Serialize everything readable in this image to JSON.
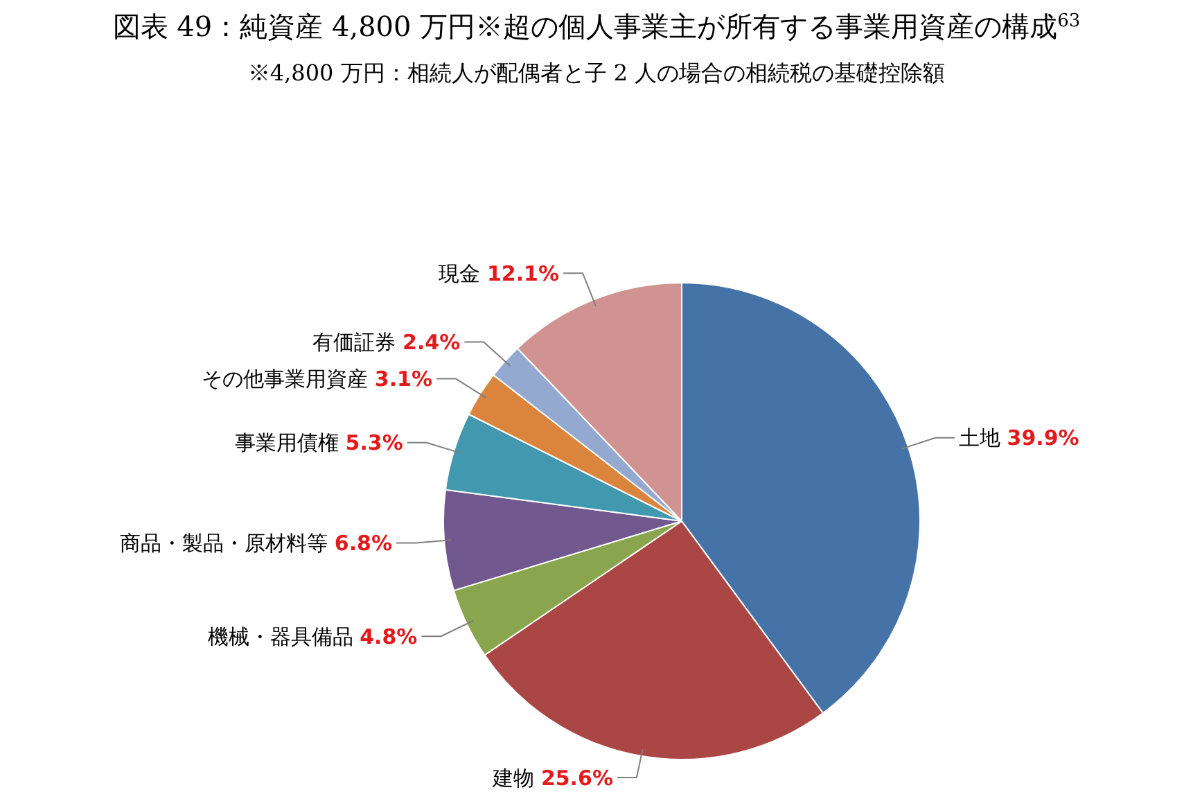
{
  "chart_data": {
    "type": "pie",
    "title": "図表 49：純資産 4,800 万円※超の個人事業主が所有する事業用資産の構成$^{63}$",
    "subtitle": "※4,800 万円：相続人が配偶者と子 2 人の場合の相続税の基礎控除額",
    "categories": [
      "土地",
      "建物",
      "機械・器具備品",
      "商品・製品・原材料等",
      "事業用債権",
      "その他事業用資産",
      "有価証券",
      "現金"
    ],
    "values": [
      39.9,
      25.6,
      4.8,
      6.8,
      5.3,
      3.1,
      2.4,
      12.1
    ],
    "value_labels": [
      "39.9%",
      "25.6%",
      "4.8%",
      "6.8%",
      "5.3%",
      "3.1%",
      "2.4%",
      "12.1%"
    ],
    "colors": [
      "#4573a7",
      "#aa4644",
      "#89a54e",
      "#71588f",
      "#4198af",
      "#db843d",
      "#93a9cf",
      "#d19392"
    ]
  }
}
